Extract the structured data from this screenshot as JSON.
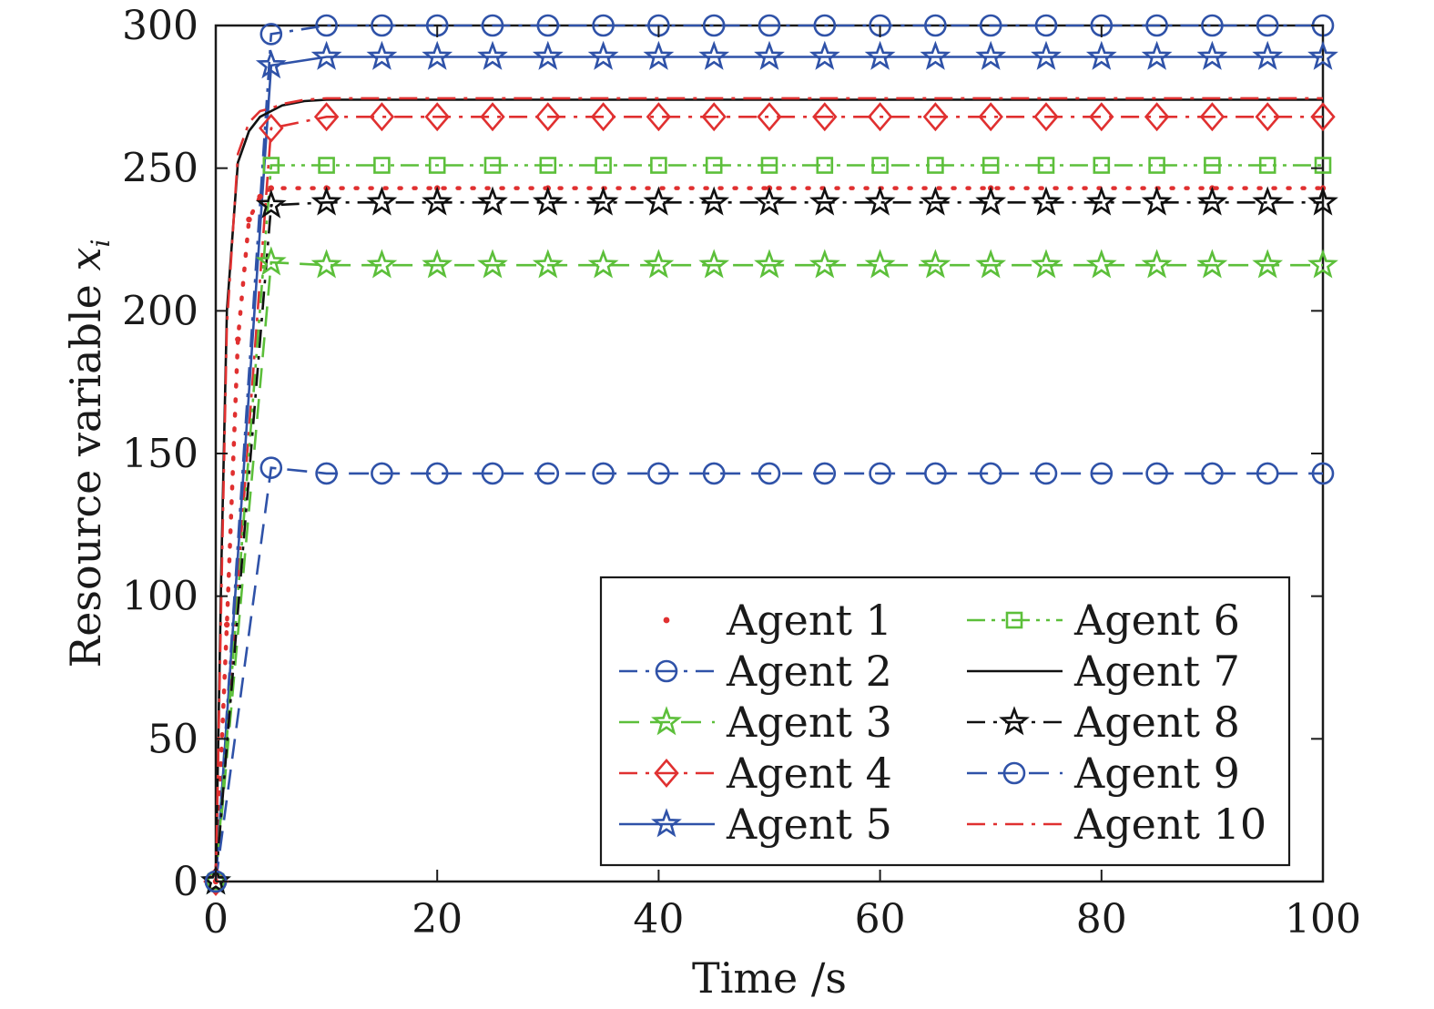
{
  "chart_data": {
    "type": "line",
    "title": "",
    "xlabel": "Time /s",
    "ylabel": "Resource variable x_i",
    "ylabel_text": "Resource variable ",
    "ylabel_symbol": "x",
    "ylabel_subscript": "i",
    "xlim": [
      0,
      100
    ],
    "ylim": [
      0,
      300
    ],
    "xticks": [
      0,
      20,
      40,
      60,
      80,
      100
    ],
    "yticks": [
      0,
      50,
      100,
      150,
      200,
      250,
      300
    ],
    "grid": false,
    "legend_position": "bottom-right",
    "legend_columns": 2,
    "series": [
      {
        "name": "Agent 1",
        "color": "#e03030",
        "line": "dotted",
        "marker": "dot",
        "x": [
          0,
          1,
          2,
          3,
          4,
          5,
          10,
          20,
          30,
          50,
          70,
          90,
          100
        ],
        "y": [
          0,
          90,
          190,
          232,
          240,
          243,
          243,
          243,
          243,
          243,
          243,
          243,
          243
        ]
      },
      {
        "name": "Agent 2",
        "color": "#2f52a8",
        "line": "dashdot",
        "marker": "circle",
        "x": [
          0,
          5,
          10,
          15,
          20,
          25,
          30,
          35,
          40,
          45,
          50,
          55,
          60,
          65,
          70,
          75,
          80,
          85,
          90,
          95,
          100
        ],
        "y": [
          0,
          297,
          300,
          300,
          300,
          300,
          300,
          300,
          300,
          300,
          300,
          300,
          300,
          300,
          300,
          300,
          300,
          300,
          300,
          300,
          300
        ]
      },
      {
        "name": "Agent 3",
        "color": "#5cbf3a",
        "line": "dashed",
        "marker": "star",
        "x": [
          0,
          5,
          10,
          15,
          20,
          25,
          30,
          35,
          40,
          45,
          50,
          55,
          60,
          65,
          70,
          75,
          80,
          85,
          90,
          95,
          100
        ],
        "y": [
          0,
          217,
          216,
          216,
          216,
          216,
          216,
          216,
          216,
          216,
          216,
          216,
          216,
          216,
          216,
          216,
          216,
          216,
          216,
          216,
          216
        ]
      },
      {
        "name": "Agent 4",
        "color": "#e03030",
        "line": "dashdot",
        "marker": "diamond",
        "x": [
          0,
          5,
          10,
          15,
          20,
          25,
          30,
          35,
          40,
          45,
          50,
          55,
          60,
          65,
          70,
          75,
          80,
          85,
          90,
          95,
          100
        ],
        "y": [
          0,
          264,
          268,
          268,
          268,
          268,
          268,
          268,
          268,
          268,
          268,
          268,
          268,
          268,
          268,
          268,
          268,
          268,
          268,
          268,
          268
        ]
      },
      {
        "name": "Agent 5",
        "color": "#2f52a8",
        "line": "solid",
        "marker": "star",
        "x": [
          0,
          5,
          10,
          15,
          20,
          25,
          30,
          35,
          40,
          45,
          50,
          55,
          60,
          65,
          70,
          75,
          80,
          85,
          90,
          95,
          100
        ],
        "y": [
          0,
          286,
          289,
          289,
          289,
          289,
          289,
          289,
          289,
          289,
          289,
          289,
          289,
          289,
          289,
          289,
          289,
          289,
          289,
          289,
          289
        ]
      },
      {
        "name": "Agent 6",
        "color": "#5cbf3a",
        "line": "dashdotdot",
        "marker": "square",
        "x": [
          0,
          5,
          10,
          15,
          20,
          25,
          30,
          35,
          40,
          45,
          50,
          55,
          60,
          65,
          70,
          75,
          80,
          85,
          90,
          95,
          100
        ],
        "y": [
          0,
          251,
          251,
          251,
          251,
          251,
          251,
          251,
          251,
          251,
          251,
          251,
          251,
          251,
          251,
          251,
          251,
          251,
          251,
          251,
          251
        ]
      },
      {
        "name": "Agent 7",
        "color": "#111111",
        "line": "solid",
        "marker": "none",
        "x": [
          0,
          0.5,
          1,
          2,
          3,
          4,
          5,
          6,
          8,
          10,
          15,
          20,
          50,
          100
        ],
        "y": [
          0,
          110,
          200,
          252,
          263,
          268,
          270,
          272,
          273.5,
          274,
          274,
          274,
          274,
          274
        ]
      },
      {
        "name": "Agent 8",
        "color": "#111111",
        "line": "dashdot",
        "marker": "star",
        "x": [
          0,
          5,
          10,
          15,
          20,
          25,
          30,
          35,
          40,
          45,
          50,
          55,
          60,
          65,
          70,
          75,
          80,
          85,
          90,
          95,
          100
        ],
        "y": [
          0,
          237,
          238,
          238,
          238,
          238,
          238,
          238,
          238,
          238,
          238,
          238,
          238,
          238,
          238,
          238,
          238,
          238,
          238,
          238,
          238
        ]
      },
      {
        "name": "Agent 9",
        "color": "#2f52a8",
        "line": "dashed",
        "marker": "circle",
        "x": [
          0,
          5,
          10,
          15,
          20,
          25,
          30,
          35,
          40,
          45,
          50,
          55,
          60,
          65,
          70,
          75,
          80,
          85,
          90,
          95,
          100
        ],
        "y": [
          0,
          145,
          143,
          143,
          143,
          143,
          143,
          143,
          143,
          143,
          143,
          143,
          143,
          143,
          143,
          143,
          143,
          143,
          143,
          143,
          143
        ]
      },
      {
        "name": "Agent 10",
        "color": "#e03030",
        "line": "dashdot",
        "marker": "none",
        "x": [
          0,
          0.5,
          1,
          2,
          3,
          4,
          5,
          6,
          8,
          10,
          15,
          20,
          50,
          100
        ],
        "y": [
          0,
          100,
          195,
          255,
          266,
          270,
          271,
          272.5,
          274,
          274.5,
          274.5,
          274.5,
          274.5,
          274.5
        ]
      }
    ]
  }
}
